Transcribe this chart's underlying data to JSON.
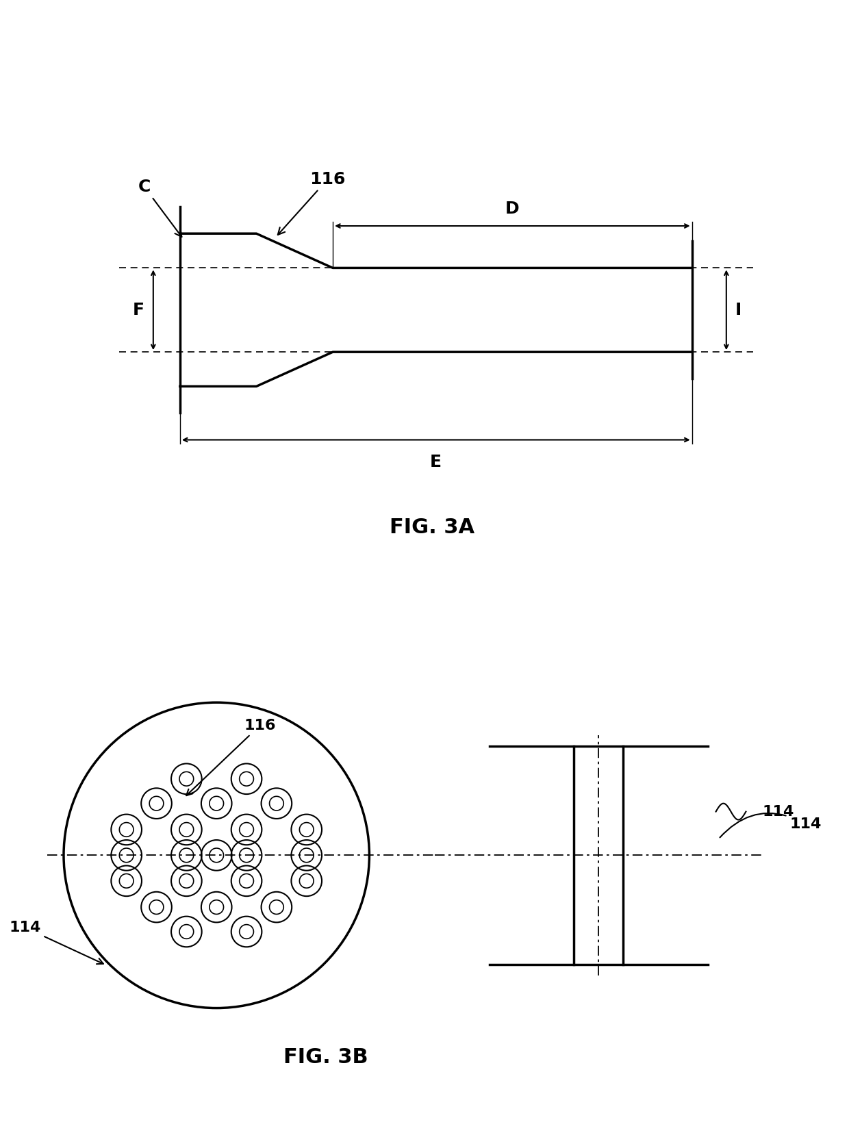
{
  "fig_3a_label": "FIG. 3A",
  "fig_3b_label": "FIG. 3B",
  "label_C": "C",
  "label_D": "D",
  "label_E": "E",
  "label_F": "F",
  "label_I": "I",
  "label_116_3a": "116",
  "label_116_3b": "116",
  "label_114_3b": "114",
  "label_114_side": "114",
  "lw": 2.0,
  "lw_thick": 2.5,
  "bg_color": "#ffffff",
  "line_color": "#000000"
}
